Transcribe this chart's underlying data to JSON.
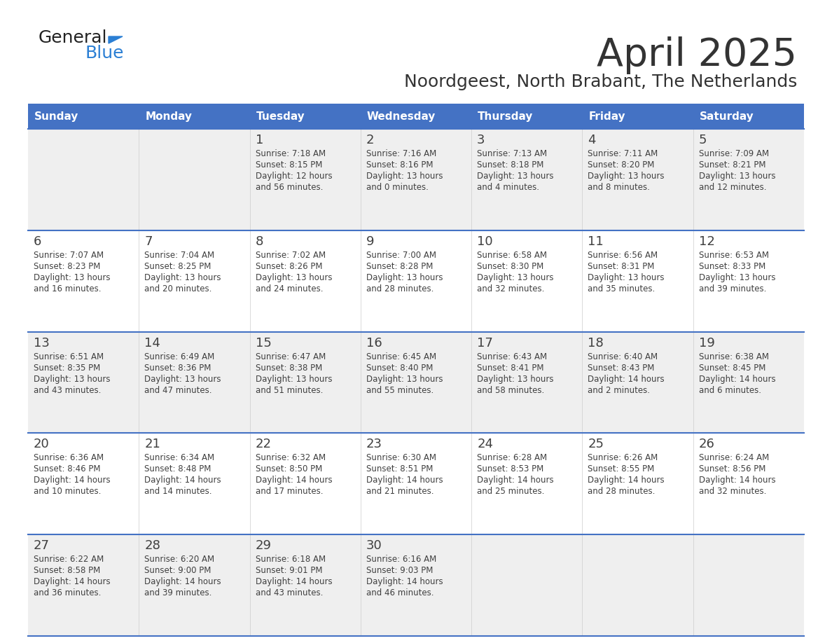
{
  "title": "April 2025",
  "subtitle": "Noordgeest, North Brabant, The Netherlands",
  "days_of_week": [
    "Sunday",
    "Monday",
    "Tuesday",
    "Wednesday",
    "Thursday",
    "Friday",
    "Saturday"
  ],
  "header_bg": "#4472C4",
  "header_text": "#FFFFFF",
  "row_bg_light": "#EFEFEF",
  "row_bg_white": "#FFFFFF",
  "cell_text_color": "#404040",
  "border_color": "#4472C4",
  "title_color": "#333333",
  "subtitle_color": "#333333",
  "logo_text_color": "#222222",
  "logo_blue_color": "#2B7FD4",
  "calendar": [
    [
      {
        "day": "",
        "lines": []
      },
      {
        "day": "",
        "lines": []
      },
      {
        "day": "1",
        "lines": [
          "Sunrise: 7:18 AM",
          "Sunset: 8:15 PM",
          "Daylight: 12 hours",
          "and 56 minutes."
        ]
      },
      {
        "day": "2",
        "lines": [
          "Sunrise: 7:16 AM",
          "Sunset: 8:16 PM",
          "Daylight: 13 hours",
          "and 0 minutes."
        ]
      },
      {
        "day": "3",
        "lines": [
          "Sunrise: 7:13 AM",
          "Sunset: 8:18 PM",
          "Daylight: 13 hours",
          "and 4 minutes."
        ]
      },
      {
        "day": "4",
        "lines": [
          "Sunrise: 7:11 AM",
          "Sunset: 8:20 PM",
          "Daylight: 13 hours",
          "and 8 minutes."
        ]
      },
      {
        "day": "5",
        "lines": [
          "Sunrise: 7:09 AM",
          "Sunset: 8:21 PM",
          "Daylight: 13 hours",
          "and 12 minutes."
        ]
      }
    ],
    [
      {
        "day": "6",
        "lines": [
          "Sunrise: 7:07 AM",
          "Sunset: 8:23 PM",
          "Daylight: 13 hours",
          "and 16 minutes."
        ]
      },
      {
        "day": "7",
        "lines": [
          "Sunrise: 7:04 AM",
          "Sunset: 8:25 PM",
          "Daylight: 13 hours",
          "and 20 minutes."
        ]
      },
      {
        "day": "8",
        "lines": [
          "Sunrise: 7:02 AM",
          "Sunset: 8:26 PM",
          "Daylight: 13 hours",
          "and 24 minutes."
        ]
      },
      {
        "day": "9",
        "lines": [
          "Sunrise: 7:00 AM",
          "Sunset: 8:28 PM",
          "Daylight: 13 hours",
          "and 28 minutes."
        ]
      },
      {
        "day": "10",
        "lines": [
          "Sunrise: 6:58 AM",
          "Sunset: 8:30 PM",
          "Daylight: 13 hours",
          "and 32 minutes."
        ]
      },
      {
        "day": "11",
        "lines": [
          "Sunrise: 6:56 AM",
          "Sunset: 8:31 PM",
          "Daylight: 13 hours",
          "and 35 minutes."
        ]
      },
      {
        "day": "12",
        "lines": [
          "Sunrise: 6:53 AM",
          "Sunset: 8:33 PM",
          "Daylight: 13 hours",
          "and 39 minutes."
        ]
      }
    ],
    [
      {
        "day": "13",
        "lines": [
          "Sunrise: 6:51 AM",
          "Sunset: 8:35 PM",
          "Daylight: 13 hours",
          "and 43 minutes."
        ]
      },
      {
        "day": "14",
        "lines": [
          "Sunrise: 6:49 AM",
          "Sunset: 8:36 PM",
          "Daylight: 13 hours",
          "and 47 minutes."
        ]
      },
      {
        "day": "15",
        "lines": [
          "Sunrise: 6:47 AM",
          "Sunset: 8:38 PM",
          "Daylight: 13 hours",
          "and 51 minutes."
        ]
      },
      {
        "day": "16",
        "lines": [
          "Sunrise: 6:45 AM",
          "Sunset: 8:40 PM",
          "Daylight: 13 hours",
          "and 55 minutes."
        ]
      },
      {
        "day": "17",
        "lines": [
          "Sunrise: 6:43 AM",
          "Sunset: 8:41 PM",
          "Daylight: 13 hours",
          "and 58 minutes."
        ]
      },
      {
        "day": "18",
        "lines": [
          "Sunrise: 6:40 AM",
          "Sunset: 8:43 PM",
          "Daylight: 14 hours",
          "and 2 minutes."
        ]
      },
      {
        "day": "19",
        "lines": [
          "Sunrise: 6:38 AM",
          "Sunset: 8:45 PM",
          "Daylight: 14 hours",
          "and 6 minutes."
        ]
      }
    ],
    [
      {
        "day": "20",
        "lines": [
          "Sunrise: 6:36 AM",
          "Sunset: 8:46 PM",
          "Daylight: 14 hours",
          "and 10 minutes."
        ]
      },
      {
        "day": "21",
        "lines": [
          "Sunrise: 6:34 AM",
          "Sunset: 8:48 PM",
          "Daylight: 14 hours",
          "and 14 minutes."
        ]
      },
      {
        "day": "22",
        "lines": [
          "Sunrise: 6:32 AM",
          "Sunset: 8:50 PM",
          "Daylight: 14 hours",
          "and 17 minutes."
        ]
      },
      {
        "day": "23",
        "lines": [
          "Sunrise: 6:30 AM",
          "Sunset: 8:51 PM",
          "Daylight: 14 hours",
          "and 21 minutes."
        ]
      },
      {
        "day": "24",
        "lines": [
          "Sunrise: 6:28 AM",
          "Sunset: 8:53 PM",
          "Daylight: 14 hours",
          "and 25 minutes."
        ]
      },
      {
        "day": "25",
        "lines": [
          "Sunrise: 6:26 AM",
          "Sunset: 8:55 PM",
          "Daylight: 14 hours",
          "and 28 minutes."
        ]
      },
      {
        "day": "26",
        "lines": [
          "Sunrise: 6:24 AM",
          "Sunset: 8:56 PM",
          "Daylight: 14 hours",
          "and 32 minutes."
        ]
      }
    ],
    [
      {
        "day": "27",
        "lines": [
          "Sunrise: 6:22 AM",
          "Sunset: 8:58 PM",
          "Daylight: 14 hours",
          "and 36 minutes."
        ]
      },
      {
        "day": "28",
        "lines": [
          "Sunrise: 6:20 AM",
          "Sunset: 9:00 PM",
          "Daylight: 14 hours",
          "and 39 minutes."
        ]
      },
      {
        "day": "29",
        "lines": [
          "Sunrise: 6:18 AM",
          "Sunset: 9:01 PM",
          "Daylight: 14 hours",
          "and 43 minutes."
        ]
      },
      {
        "day": "30",
        "lines": [
          "Sunrise: 6:16 AM",
          "Sunset: 9:03 PM",
          "Daylight: 14 hours",
          "and 46 minutes."
        ]
      },
      {
        "day": "",
        "lines": []
      },
      {
        "day": "",
        "lines": []
      },
      {
        "day": "",
        "lines": []
      }
    ]
  ]
}
